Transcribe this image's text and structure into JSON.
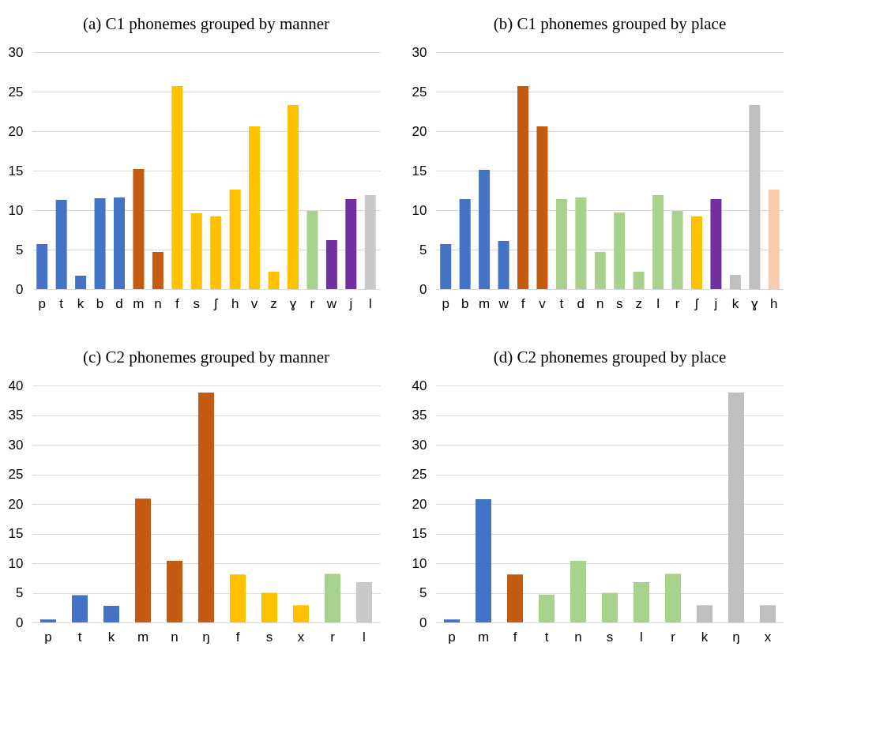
{
  "chart_data": [
    {
      "type": "bar",
      "title": "(a) C1 phonemes grouped by manner",
      "categories": [
        "p",
        "t",
        "k",
        "b",
        "d",
        "m",
        "n",
        "f",
        "s",
        "ʃ",
        "h",
        "v",
        "z",
        "ɣ",
        "r",
        "w",
        "j",
        "l"
      ],
      "values": [
        5.7,
        11.3,
        1.7,
        11.5,
        11.6,
        15.2,
        4.7,
        25.7,
        9.6,
        9.2,
        12.6,
        20.6,
        2.2,
        23.3,
        9.9,
        6.2,
        11.4,
        11.9
      ],
      "colors": [
        "#4472c4",
        "#4472c4",
        "#4472c4",
        "#4472c4",
        "#4472c4",
        "#c55a11",
        "#c55a11",
        "#ffc000",
        "#ffc000",
        "#ffc000",
        "#ffc000",
        "#ffc000",
        "#ffc000",
        "#ffc000",
        "#a9d18e",
        "#7030a0",
        "#7030a0",
        "#c9c9c9"
      ],
      "ylim": [
        0,
        30
      ],
      "yticks": [
        0,
        5,
        10,
        15,
        20,
        25,
        30
      ],
      "grid": "y"
    },
    {
      "type": "bar",
      "title": "(b) C1 phonemes grouped by place",
      "categories": [
        "p",
        "b",
        "m",
        "w",
        "f",
        "v",
        "t",
        "d",
        "n",
        "s",
        "z",
        "l",
        "r",
        "ʃ",
        "j",
        "k",
        "ɣ",
        "h"
      ],
      "values": [
        5.7,
        11.4,
        15.1,
        6.1,
        25.7,
        20.6,
        11.4,
        11.6,
        4.7,
        9.7,
        2.2,
        11.9,
        9.9,
        9.2,
        11.4,
        1.8,
        23.3,
        12.6
      ],
      "colors": [
        "#4472c4",
        "#4472c4",
        "#4472c4",
        "#4472c4",
        "#c55a11",
        "#c55a11",
        "#a9d18e",
        "#a9d18e",
        "#a9d18e",
        "#a9d18e",
        "#a9d18e",
        "#a9d18e",
        "#a9d18e",
        "#ffc000",
        "#7030a0",
        "#bfbfbf",
        "#bfbfbf",
        "#f8cbad"
      ],
      "ylim": [
        0,
        30
      ],
      "yticks": [
        0,
        5,
        10,
        15,
        20,
        25,
        30
      ],
      "grid": "y"
    },
    {
      "type": "bar",
      "title": "(c) C2 phonemes grouped by manner",
      "categories": [
        "p",
        "t",
        "k",
        "m",
        "n",
        "ŋ",
        "f",
        "s",
        "x",
        "r",
        "l"
      ],
      "values": [
        0.5,
        4.6,
        2.8,
        20.9,
        10.4,
        38.8,
        8.1,
        5.0,
        2.9,
        8.2,
        6.8
      ],
      "colors": [
        "#4472c4",
        "#4472c4",
        "#4472c4",
        "#c55a11",
        "#c55a11",
        "#c55a11",
        "#ffc000",
        "#ffc000",
        "#ffc000",
        "#a9d18e",
        "#c9c9c9"
      ],
      "ylim": [
        0,
        40
      ],
      "yticks": [
        0,
        5,
        10,
        15,
        20,
        25,
        30,
        35,
        40
      ],
      "grid": "y"
    },
    {
      "type": "bar",
      "title": "(d) C2 phonemes grouped by place",
      "categories": [
        "p",
        "m",
        "f",
        "t",
        "n",
        "s",
        "l",
        "r",
        "k",
        "ŋ",
        "x"
      ],
      "values": [
        0.5,
        20.8,
        8.1,
        4.7,
        10.4,
        5.0,
        6.8,
        8.2,
        2.9,
        38.8,
        2.9
      ],
      "colors": [
        "#4472c4",
        "#4472c4",
        "#c55a11",
        "#a9d18e",
        "#a9d18e",
        "#a9d18e",
        "#a9d18e",
        "#a9d18e",
        "#bfbfbf",
        "#bfbfbf",
        "#bfbfbf"
      ],
      "ylim": [
        0,
        40
      ],
      "yticks": [
        0,
        5,
        10,
        15,
        20,
        25,
        30,
        35,
        40
      ],
      "grid": "y"
    }
  ]
}
